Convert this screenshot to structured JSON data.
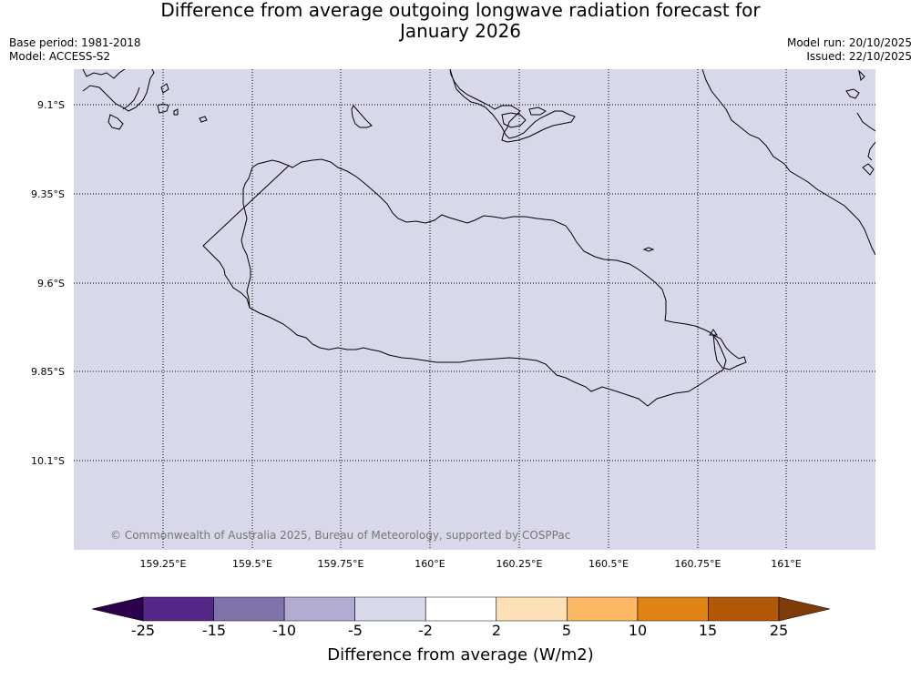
{
  "title": {
    "line1": "Difference from average outgoing longwave radiation forecast for",
    "line2": "January 2026"
  },
  "meta": {
    "base_period": "Base period: 1981-2018",
    "model": "Model: ACCESS-S2",
    "model_run": "Model run: 20/10/2025",
    "issued": "Issued: 22/10/2025"
  },
  "map": {
    "background_color": "#d8d8ea",
    "copyright": "© Commonwealth of Australia 2025, Bureau of Meteorology, supported by COSPPac",
    "lat_labels": [
      "9.1°S",
      "9.35°S",
      "9.6°S",
      "9.85°S",
      "10.1°S"
    ],
    "lon_labels": [
      "159.25°E",
      "159.5°E",
      "159.75°E",
      "160°E",
      "160.25°E",
      "160.5°E",
      "160.75°E",
      "161°E"
    ]
  },
  "colorbar": {
    "ticks": [
      "-25",
      "-15",
      "-10",
      "-5",
      "-2",
      "2",
      "5",
      "10",
      "15",
      "25"
    ],
    "colors": [
      "#2d004b",
      "#542788",
      "#8073ac",
      "#b2abd2",
      "#d8daeb",
      "#ffffff",
      "#fee0b6",
      "#fdb863",
      "#e08214",
      "#b35806",
      "#7f3b08"
    ],
    "label": "Difference from average (W/m2)"
  }
}
